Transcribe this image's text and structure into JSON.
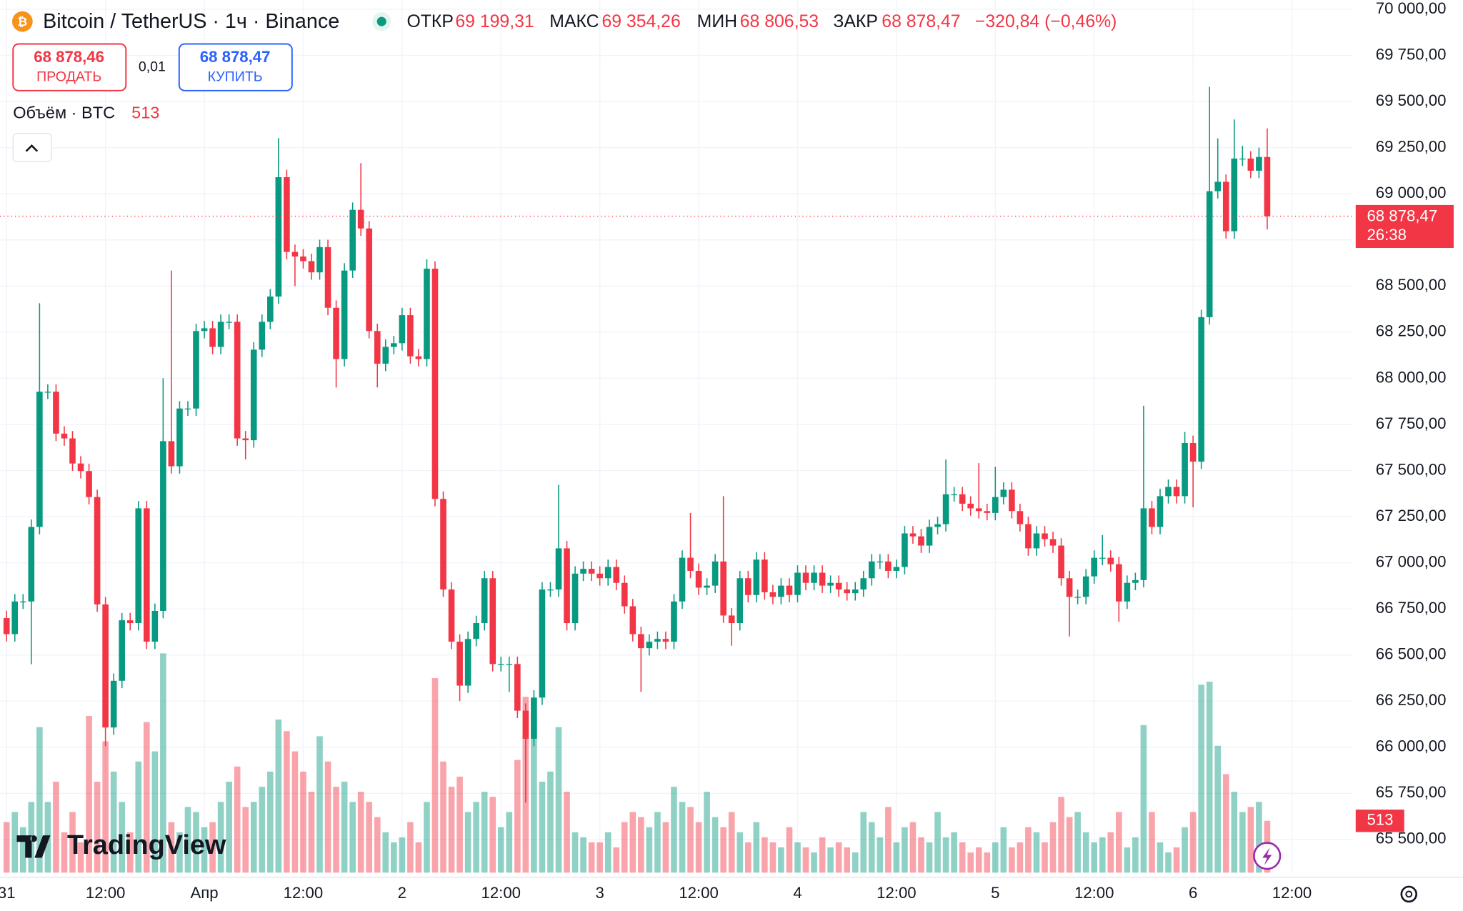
{
  "chart_data": {
    "type": "candlestick",
    "title": "Bitcoin / TetherUS · 1ч · Binance",
    "up_color": "#089981",
    "down_color": "#f23645",
    "ohlc_header": [
      {
        "name": "ОТКР",
        "value": 69199.31,
        "label": "69 199,31"
      },
      {
        "name": "МАКС",
        "value": 69354.26,
        "label": "69 354,26"
      },
      {
        "name": "МИН",
        "value": 68806.53,
        "label": "68 806,53"
      },
      {
        "name": "ЗАКР",
        "value": 68878.47,
        "label": "68 878,47"
      }
    ],
    "change": {
      "value": -320.84,
      "label": "−320,84 (−0,46%)"
    },
    "trade_panel": {
      "sell_price": "68 878,46",
      "sell": "ПРОДАТЬ",
      "spread": "0,01",
      "buy_price": "68 878,47",
      "buy": "КУПИТЬ"
    },
    "volume_title": "Объём · BTC",
    "last_price": {
      "value": 68878.47,
      "label": "68 878,47"
    },
    "timer": "26:38",
    "logo": "TradingView",
    "grid": true,
    "xlim": [
      -0.8,
      163.4
    ],
    "xticks": [
      {
        "value": 0,
        "label": "31"
      },
      {
        "value": 12,
        "label": "12:00"
      },
      {
        "value": 24,
        "label": "Апр"
      },
      {
        "value": 36,
        "label": "12:00"
      },
      {
        "value": 48,
        "label": "2"
      },
      {
        "value": 60,
        "label": "12:00"
      },
      {
        "value": 72,
        "label": "3"
      },
      {
        "value": 84,
        "label": "12:00"
      },
      {
        "value": 96,
        "label": "4"
      },
      {
        "value": 108,
        "label": "12:00"
      },
      {
        "value": 120,
        "label": "5"
      },
      {
        "value": 132,
        "label": "12:00"
      },
      {
        "value": 144,
        "label": "6"
      },
      {
        "value": 156,
        "label": "12:00"
      }
    ],
    "ylim": [
      65320,
      70050
    ],
    "yticks": [
      {
        "value": 65500,
        "label": "65 500,00"
      },
      {
        "value": 65750,
        "label": "65 750,00"
      },
      {
        "value": 66000,
        "label": "66 000,00"
      },
      {
        "value": 66250,
        "label": "66 250,00"
      },
      {
        "value": 66500,
        "label": "66 500,00"
      },
      {
        "value": 66750,
        "label": "66 750,00"
      },
      {
        "value": 67000,
        "label": "67 000,00"
      },
      {
        "value": 67250,
        "label": "67 250,00"
      },
      {
        "value": 67500,
        "label": "67 500,00"
      },
      {
        "value": 67750,
        "label": "67 750,00"
      },
      {
        "value": 68000,
        "label": "68 000,00"
      },
      {
        "value": 68250,
        "label": "68 250,00"
      },
      {
        "value": 68500,
        "label": "68 500,00"
      },
      {
        "value": 68750,
        "label": "68 750,00"
      },
      {
        "value": 69000,
        "label": "69 000,00"
      },
      {
        "value": 69250,
        "label": "69 250,00"
      },
      {
        "value": 69500,
        "label": "69 500,00"
      },
      {
        "value": 69750,
        "label": "69 750,00"
      },
      {
        "value": 70000,
        "label": "70 000,00"
      }
    ],
    "open": [
      66700,
      66613,
      66790,
      66790,
      67194,
      67927,
      67927,
      67700,
      67674,
      67538,
      67497,
      67356,
      66774,
      66107,
      66360,
      66688,
      66673,
      67295,
      66572,
      66739,
      67659,
      67523,
      67836,
      67836,
      68256,
      68271,
      68170,
      68306,
      68306,
      67674,
      67664,
      68155,
      68306,
      68443,
      69090,
      68685,
      68660,
      68635,
      68574,
      68711,
      68382,
      68104,
      68584,
      68913,
      68812,
      68256,
      68079,
      68170,
      68190,
      68342,
      68119,
      68104,
      68594,
      67346,
      66855,
      66572,
      66334,
      66587,
      66673,
      66916,
      66451,
      66451,
      66451,
      66198,
      66046,
      66269,
      66855,
      66855,
      67078,
      66673,
      66941,
      66967,
      66941,
      66916,
      66977,
      66891,
      66764,
      66613,
      66537,
      66572,
      66587,
      66572,
      66790,
      67027,
      66956,
      66865,
      66876,
      67007,
      66714,
      66673,
      66916,
      66825,
      67017,
      66840,
      66815,
      66876,
      66825,
      66946,
      66891,
      66946,
      66876,
      66891,
      66855,
      66835,
      66855,
      66916,
      67007,
      67007,
      66956,
      66977,
      67159,
      67143,
      67093,
      67194,
      67209,
      67371,
      67371,
      67320,
      67295,
      67280,
      67270,
      67356,
      67396,
      67280,
      67209,
      67078,
      67159,
      67128,
      67093,
      66916,
      66815,
      66815,
      66926,
      67027,
      67027,
      66992,
      66790,
      66891,
      66906,
      67295,
      67194,
      67361,
      67411,
      67361,
      67649,
      67548,
      68331,
      69014,
      69065,
      68797,
      69191,
      69191,
      69125,
      69199.31
    ],
    "high": [
      66740,
      66830,
      66830,
      67234,
      68407,
      67967,
      67967,
      67740,
      67714,
      67578,
      67537,
      67396,
      66814,
      66400,
      66728,
      66728,
      67335,
      67335,
      66779,
      68000,
      68584,
      67876,
      67876,
      68296,
      68311,
      68311,
      68346,
      68346,
      68346,
      67714,
      68195,
      68346,
      68483,
      69302,
      69130,
      68725,
      68700,
      68675,
      68751,
      68751,
      68422,
      68624,
      68953,
      69166,
      68852,
      68296,
      68210,
      68230,
      68382,
      68382,
      68159,
      68645,
      68634,
      67386,
      66895,
      66612,
      66627,
      66713,
      66956,
      66956,
      66491,
      66491,
      66491,
      66238,
      66309,
      66895,
      66895,
      67422,
      67118,
      66981,
      67007,
      67007,
      66981,
      67017,
      67017,
      66931,
      66804,
      66653,
      66612,
      66627,
      66627,
      66830,
      67067,
      67270,
      66996,
      66916,
      67047,
      67361,
      66754,
      66956,
      66956,
      67057,
      67057,
      66880,
      66916,
      66916,
      66986,
      66986,
      66986,
      66986,
      66931,
      66931,
      66895,
      66895,
      66956,
      67047,
      67047,
      67047,
      67017,
      67199,
      67199,
      67183,
      67234,
      67249,
      67560,
      67411,
      67411,
      67360,
      67540,
      67320,
      67520,
      67436,
      67436,
      67320,
      67249,
      67199,
      67199,
      67168,
      67133,
      66956,
      66855,
      66966,
      67067,
      67150,
      67067,
      67032,
      66931,
      66946,
      67851,
      67335,
      67401,
      67451,
      67451,
      67709,
      67689,
      68371,
      69580,
      69300,
      69105,
      69403,
      69260,
      69231,
      69250,
      69354.26
    ],
    "low": [
      66573,
      66573,
      66750,
      66450,
      67154,
      67887,
      67660,
      67634,
      67498,
      67457,
      67316,
      66734,
      66006,
      66067,
      66320,
      66633,
      66633,
      66532,
      66532,
      66699,
      67483,
      67483,
      67796,
      67796,
      68216,
      68130,
      68130,
      68266,
      67634,
      67560,
      67624,
      68115,
      68266,
      68403,
      68645,
      68500,
      68595,
      68534,
      68534,
      68342,
      67950,
      68064,
      68544,
      68772,
      68216,
      67950,
      68039,
      68130,
      68150,
      68079,
      68064,
      68064,
      67306,
      66815,
      66532,
      66250,
      66294,
      66547,
      66633,
      66411,
      66411,
      66300,
      66158,
      65700,
      66006,
      66229,
      66815,
      66815,
      66633,
      66633,
      66901,
      66901,
      66876,
      66876,
      66851,
      66724,
      66573,
      66300,
      66497,
      66532,
      66532,
      66532,
      66750,
      66916,
      66825,
      66825,
      66836,
      66674,
      66550,
      66633,
      66785,
      66785,
      66800,
      66775,
      66775,
      66785,
      66785,
      66851,
      66851,
      66836,
      66836,
      66815,
      66795,
      66795,
      66815,
      66876,
      66967,
      66916,
      66916,
      66937,
      67103,
      67053,
      67053,
      67154,
      67169,
      67331,
      67280,
      67255,
      67240,
      67230,
      67230,
      67316,
      67240,
      67169,
      67038,
      67038,
      67088,
      67053,
      66876,
      66600,
      66775,
      66775,
      66886,
      66987,
      66952,
      66680,
      66750,
      66851,
      66866,
      67154,
      67154,
      67321,
      67321,
      67321,
      67300,
      67508,
      68291,
      68974,
      68757,
      68757,
      69151,
      69085,
      69085,
      68806.53
    ],
    "close": [
      66613,
      66790,
      66790,
      67194,
      67927,
      67927,
      67700,
      67674,
      67538,
      67497,
      67356,
      66774,
      66107,
      66360,
      66688,
      66673,
      67295,
      66572,
      66739,
      67659,
      67523,
      67836,
      67836,
      68256,
      68271,
      68170,
      68306,
      68306,
      67674,
      67664,
      68155,
      68306,
      68443,
      69090,
      68685,
      68660,
      68635,
      68574,
      68711,
      68382,
      68104,
      68584,
      68913,
      68812,
      68256,
      68079,
      68170,
      68190,
      68342,
      68119,
      68104,
      68594,
      67346,
      66855,
      66572,
      66334,
      66587,
      66673,
      66916,
      66451,
      66451,
      66451,
      66198,
      66046,
      66269,
      66855,
      66855,
      67078,
      66673,
      66941,
      66967,
      66941,
      66916,
      66977,
      66891,
      66764,
      66613,
      66537,
      66572,
      66587,
      66572,
      66790,
      67027,
      66956,
      66865,
      66876,
      67007,
      66714,
      66673,
      66916,
      66825,
      67017,
      66840,
      66815,
      66876,
      66825,
      66946,
      66891,
      66946,
      66876,
      66891,
      66855,
      66835,
      66855,
      66916,
      67007,
      67007,
      66956,
      66977,
      67159,
      67143,
      67093,
      67194,
      67209,
      67371,
      67371,
      67320,
      67295,
      67280,
      67270,
      67356,
      67396,
      67280,
      67209,
      67078,
      67159,
      67128,
      67093,
      66916,
      66815,
      66815,
      66926,
      67027,
      67027,
      66992,
      66790,
      66891,
      66906,
      67295,
      67194,
      67361,
      67411,
      67361,
      67649,
      67548,
      68331,
      69014,
      69065,
      68797,
      69191,
      69191,
      69125,
      69199.31,
      68878.47
    ],
    "volume": [
      500,
      600,
      450,
      700,
      1440,
      700,
      900,
      400,
      600,
      300,
      1550,
      900,
      1300,
      1000,
      700,
      400,
      1100,
      1490,
      1200,
      2170,
      500,
      400,
      650,
      600,
      450,
      500,
      700,
      900,
      1050,
      650,
      700,
      850,
      1000,
      1515,
      1400,
      1200,
      1000,
      800,
      1350,
      1100,
      850,
      900,
      700,
      800,
      700,
      550,
      400,
      300,
      350,
      500,
      300,
      700,
      1925,
      1100,
      850,
      950,
      600,
      700,
      800,
      750,
      450,
      600,
      1115,
      1740,
      1400,
      900,
      1000,
      1440,
      800,
      400,
      350,
      300,
      300,
      400,
      250,
      500,
      600,
      550,
      450,
      600,
      500,
      850,
      700,
      650,
      500,
      800,
      550,
      450,
      600,
      400,
      300,
      500,
      350,
      300,
      250,
      450,
      300,
      250,
      200,
      350,
      250,
      300,
      250,
      200,
      600,
      500,
      350,
      650,
      300,
      450,
      500,
      350,
      300,
      600,
      350,
      400,
      300,
      200,
      250,
      200,
      300,
      450,
      250,
      300,
      450,
      400,
      300,
      500,
      750,
      550,
      600,
      400,
      300,
      350,
      400,
      600,
      250,
      350,
      1460,
      600,
      300,
      200,
      250,
      450,
      600,
      1860,
      1890,
      1255,
      975,
      800,
      600,
      650,
      700,
      513
    ]
  }
}
